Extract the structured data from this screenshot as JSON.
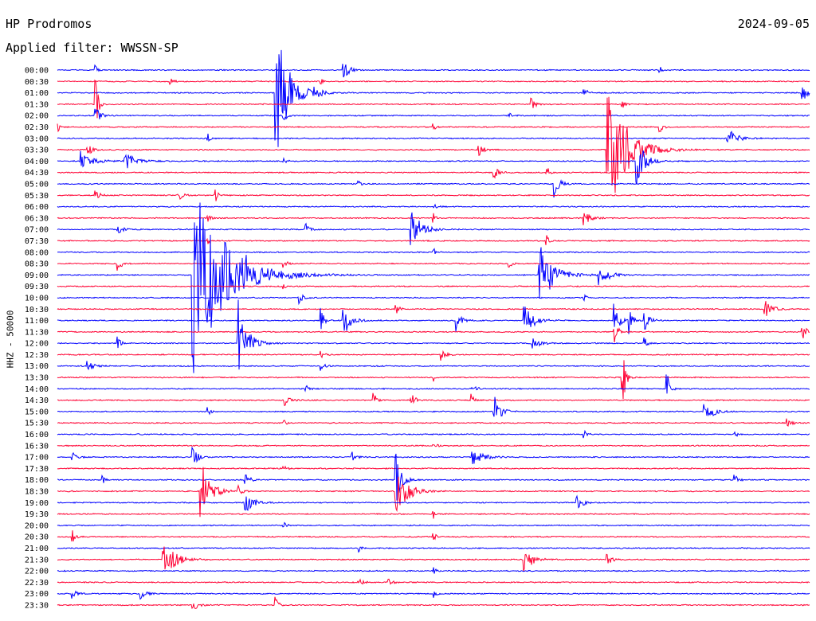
{
  "header": {
    "station": "HP Prodromos",
    "date": "2024-09-05",
    "filter": "Applied filter: WWSSN-SP"
  },
  "chart_data": {
    "type": "line",
    "title": "HP Prodromos",
    "ylabel": "HHZ - 50000",
    "colors": [
      "#0000ff",
      "#ff0033"
    ],
    "rows": [
      {
        "time": "00:00",
        "events": [
          [
            0.38,
            1.0,
            6
          ],
          [
            0.05,
            0.6,
            2
          ],
          [
            0.8,
            0.6,
            2
          ]
        ]
      },
      {
        "time": "00:30",
        "events": [
          [
            0.15,
            0.3,
            4
          ],
          [
            0.35,
            0.3,
            3
          ]
        ]
      },
      {
        "time": "01:00",
        "events": [
          [
            0.29,
            6.5,
            14
          ],
          [
            0.34,
            0.8,
            6
          ],
          [
            0.99,
            1.0,
            5
          ],
          [
            0.7,
            0.6,
            4
          ]
        ]
      },
      {
        "time": "01:30",
        "events": [
          [
            0.05,
            3.0,
            3
          ],
          [
            0.63,
            0.6,
            5
          ],
          [
            0.75,
            0.5,
            3
          ]
        ]
      },
      {
        "time": "02:00",
        "events": [
          [
            0.05,
            0.8,
            6
          ],
          [
            0.3,
            0.5,
            4
          ],
          [
            0.6,
            0.5,
            3
          ]
        ]
      },
      {
        "time": "02:30",
        "events": [
          [
            0.0,
            0.5,
            3
          ],
          [
            0.5,
            0.4,
            2
          ],
          [
            0.8,
            0.6,
            4
          ]
        ]
      },
      {
        "time": "03:00",
        "events": [
          [
            0.89,
            1.0,
            10
          ],
          [
            0.2,
            0.4,
            3
          ]
        ]
      },
      {
        "time": "03:30",
        "events": [
          [
            0.73,
            7.5,
            20
          ],
          [
            0.04,
            0.6,
            5
          ],
          [
            0.56,
            0.6,
            5
          ]
        ]
      },
      {
        "time": "04:00",
        "events": [
          [
            0.03,
            1.0,
            12
          ],
          [
            0.09,
            0.8,
            12
          ],
          [
            0.77,
            3.0,
            8
          ],
          [
            0.3,
            0.4,
            3
          ]
        ]
      },
      {
        "time": "04:30",
        "events": [
          [
            0.58,
            0.6,
            5
          ],
          [
            0.65,
            0.6,
            4
          ]
        ]
      },
      {
        "time": "05:00",
        "events": [
          [
            0.66,
            1.2,
            6
          ],
          [
            0.4,
            0.4,
            3
          ]
        ]
      },
      {
        "time": "05:30",
        "events": [
          [
            0.16,
            0.6,
            5
          ],
          [
            0.21,
            0.6,
            4
          ],
          [
            0.05,
            0.5,
            5
          ]
        ]
      },
      {
        "time": "06:00",
        "events": [
          [
            0.5,
            0.4,
            3
          ]
        ]
      },
      {
        "time": "06:30",
        "events": [
          [
            0.7,
            0.6,
            8
          ],
          [
            0.2,
            0.4,
            3
          ],
          [
            0.5,
            0.4,
            3
          ]
        ]
      },
      {
        "time": "07:00",
        "events": [
          [
            0.47,
            2.0,
            10
          ],
          [
            0.33,
            0.6,
            4
          ],
          [
            0.08,
            0.5,
            5
          ]
        ]
      },
      {
        "time": "07:30",
        "events": [
          [
            0.65,
            1.0,
            2
          ],
          [
            0.2,
            0.4,
            3
          ]
        ]
      },
      {
        "time": "08:00",
        "events": [
          [
            0.5,
            0.4,
            3
          ]
        ]
      },
      {
        "time": "08:30",
        "events": [
          [
            0.08,
            0.8,
            4
          ],
          [
            0.3,
            0.5,
            4
          ],
          [
            0.6,
            0.5,
            3
          ]
        ]
      },
      {
        "time": "09:00",
        "events": [
          [
            0.18,
            9.0,
            35
          ],
          [
            0.64,
            3.0,
            16
          ],
          [
            0.72,
            1.5,
            8
          ],
          [
            0.25,
            0.6,
            5
          ]
        ]
      },
      {
        "time": "09:30",
        "events": [
          [
            0.3,
            0.4,
            3
          ]
        ]
      },
      {
        "time": "10:00",
        "events": [
          [
            0.32,
            0.6,
            5
          ],
          [
            0.7,
            0.4,
            3
          ]
        ]
      },
      {
        "time": "10:30",
        "events": [
          [
            0.94,
            0.8,
            8
          ],
          [
            0.45,
            0.5,
            4
          ]
        ]
      },
      {
        "time": "11:00",
        "events": [
          [
            0.35,
            1.5,
            3
          ],
          [
            0.38,
            1.5,
            8
          ],
          [
            0.53,
            1.0,
            6
          ],
          [
            0.62,
            1.5,
            10
          ],
          [
            0.74,
            2.0,
            6
          ],
          [
            0.76,
            1.5,
            3
          ],
          [
            0.78,
            1.0,
            6
          ]
        ]
      },
      {
        "time": "11:30",
        "events": [
          [
            0.74,
            2.5,
            3
          ],
          [
            0.99,
            0.8,
            6
          ]
        ]
      },
      {
        "time": "12:00",
        "events": [
          [
            0.24,
            4.0,
            10
          ],
          [
            0.08,
            0.8,
            3
          ],
          [
            0.63,
            0.6,
            8
          ],
          [
            0.78,
            0.8,
            3
          ]
        ]
      },
      {
        "time": "12:30",
        "events": [
          [
            0.51,
            0.9,
            4
          ],
          [
            0.35,
            0.5,
            3
          ]
        ]
      },
      {
        "time": "13:00",
        "events": [
          [
            0.04,
            0.6,
            6
          ],
          [
            0.35,
            0.5,
            4
          ]
        ]
      },
      {
        "time": "13:30",
        "events": [
          [
            0.75,
            5.0,
            3
          ],
          [
            0.5,
            0.4,
            3
          ]
        ]
      },
      {
        "time": "14:00",
        "events": [
          [
            0.81,
            2.0,
            3
          ],
          [
            0.55,
            0.6,
            5
          ],
          [
            0.33,
            0.4,
            4
          ]
        ]
      },
      {
        "time": "14:30",
        "events": [
          [
            0.3,
            1.0,
            5
          ],
          [
            0.42,
            1.0,
            3
          ],
          [
            0.47,
            0.8,
            4
          ],
          [
            0.55,
            0.8,
            3
          ]
        ]
      },
      {
        "time": "15:00",
        "events": [
          [
            0.58,
            1.5,
            8
          ],
          [
            0.86,
            1.0,
            10
          ],
          [
            0.2,
            0.4,
            3
          ]
        ]
      },
      {
        "time": "15:30",
        "events": [
          [
            0.97,
            0.6,
            4
          ],
          [
            0.3,
            0.4,
            3
          ]
        ]
      },
      {
        "time": "16:00",
        "events": [
          [
            0.7,
            0.4,
            3
          ],
          [
            0.9,
            0.4,
            3
          ]
        ]
      },
      {
        "time": "16:30",
        "events": [
          [
            0.5,
            0.4,
            3
          ]
        ]
      },
      {
        "time": "17:00",
        "events": [
          [
            0.18,
            0.8,
            6
          ],
          [
            0.39,
            0.8,
            4
          ],
          [
            0.55,
            0.8,
            12
          ],
          [
            0.02,
            0.5,
            4
          ]
        ]
      },
      {
        "time": "17:30",
        "events": [
          [
            0.3,
            0.4,
            3
          ]
        ]
      },
      {
        "time": "18:00",
        "events": [
          [
            0.45,
            2.5,
            6
          ],
          [
            0.25,
            0.6,
            5
          ],
          [
            0.06,
            0.5,
            4
          ],
          [
            0.9,
            0.5,
            4
          ]
        ]
      },
      {
        "time": "18:30",
        "events": [
          [
            0.19,
            3.0,
            10
          ],
          [
            0.45,
            2.5,
            12
          ],
          [
            0.24,
            0.5,
            4
          ]
        ]
      },
      {
        "time": "19:00",
        "events": [
          [
            0.25,
            1.0,
            8
          ],
          [
            0.69,
            0.8,
            6
          ]
        ]
      },
      {
        "time": "19:30",
        "events": [
          [
            0.5,
            0.4,
            3
          ]
        ]
      },
      {
        "time": "20:00",
        "events": [
          [
            0.3,
            0.4,
            3
          ]
        ]
      },
      {
        "time": "20:30",
        "events": [
          [
            0.02,
            0.8,
            3
          ],
          [
            0.5,
            0.4,
            3
          ]
        ]
      },
      {
        "time": "21:00",
        "events": [
          [
            0.4,
            0.4,
            3
          ]
        ]
      },
      {
        "time": "21:30",
        "events": [
          [
            0.14,
            2.0,
            12
          ],
          [
            0.62,
            1.5,
            8
          ],
          [
            0.73,
            0.5,
            6
          ]
        ]
      },
      {
        "time": "22:00",
        "events": [
          [
            0.5,
            0.3,
            3
          ]
        ]
      },
      {
        "time": "22:30",
        "events": [
          [
            0.44,
            0.5,
            4
          ],
          [
            0.4,
            0.4,
            4
          ]
        ]
      },
      {
        "time": "23:00",
        "events": [
          [
            0.11,
            0.5,
            6
          ],
          [
            0.02,
            0.5,
            4
          ],
          [
            0.5,
            0.4,
            3
          ]
        ]
      },
      {
        "time": "23:30",
        "events": [
          [
            0.18,
            0.6,
            5
          ],
          [
            0.29,
            0.8,
            3
          ]
        ]
      }
    ]
  }
}
